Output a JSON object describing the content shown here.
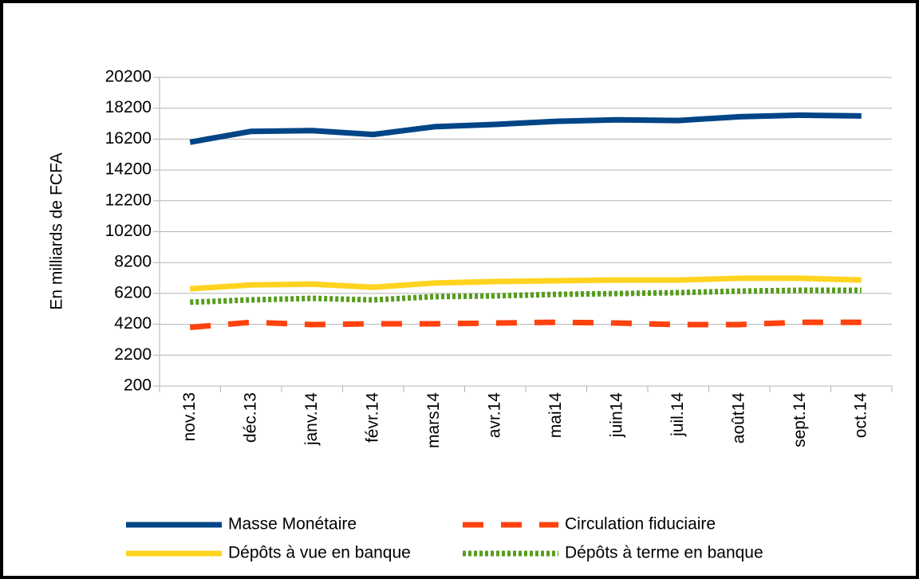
{
  "chart_data": {
    "type": "line",
    "y_label": "En milliards de FCFA",
    "categories": [
      "nov.13",
      "déc.13",
      "janv.14",
      "févr.14",
      "mars14",
      "avr.14",
      "mai14",
      "juin14",
      "juil.14",
      "août14",
      "sept.14",
      "oct.14"
    ],
    "series": [
      {
        "name": "Masse Monétaire",
        "color": "#004586",
        "dash": "solid",
        "values": [
          16000,
          16700,
          16750,
          16500,
          17000,
          17150,
          17350,
          17450,
          17400,
          17650,
          17750,
          17700
        ]
      },
      {
        "name": "Circulation fiduciaire",
        "color": "#ff420e",
        "dash": "dashed",
        "values": [
          4000,
          4330,
          4180,
          4230,
          4230,
          4280,
          4330,
          4280,
          4180,
          4180,
          4330,
          4330
        ]
      },
      {
        "name": "Dépôts à vue en banque",
        "color": "#ffd320",
        "dash": "solid",
        "values": [
          6500,
          6750,
          6800,
          6600,
          6870,
          6970,
          7020,
          7070,
          7070,
          7180,
          7180,
          7070
        ]
      },
      {
        "name": "Dépôts à terme en banque",
        "color": "#579d1c",
        "dash": "dotted",
        "values": [
          5630,
          5780,
          5880,
          5780,
          5990,
          6040,
          6140,
          6190,
          6250,
          6350,
          6400,
          6400
        ]
      }
    ],
    "ylim": [
      200,
      20200
    ],
    "yticks": [
      200,
      2200,
      4200,
      6200,
      8200,
      10200,
      12200,
      14200,
      16200,
      18200,
      20200
    ],
    "grid": true,
    "legend": "bottom"
  }
}
